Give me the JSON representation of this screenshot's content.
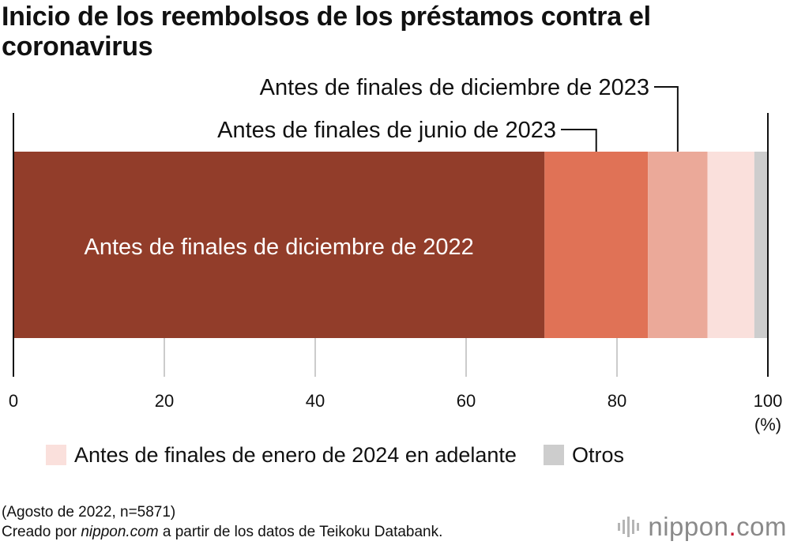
{
  "chart_data": {
    "type": "bar",
    "orientation": "horizontal-stacked",
    "title": "Inicio de los reembolsos de los préstamos contra el coronavirus",
    "series": [
      {
        "name": "Antes de finales de diciembre de 2022",
        "value": 70.4,
        "color": "#923d2a"
      },
      {
        "name": "Antes de finales de junio de 2023",
        "value": 13.7,
        "color": "#e07256"
      },
      {
        "name": "Antes de finales de diciembre de 2023",
        "value": 7.9,
        "color": "#eba999"
      },
      {
        "name": "Antes de finales de enero de 2024 en adelante",
        "value": 6.2,
        "color": "#fae0dc"
      },
      {
        "name": "Otros",
        "value": 1.8,
        "color": "#cdcdcd"
      }
    ],
    "xlim": [
      0,
      100
    ],
    "xticks": [
      "0",
      "20",
      "40",
      "60",
      "80",
      "100"
    ],
    "unit": "(%)",
    "grid": true
  },
  "legend": [
    {
      "label": "Antes de finales de enero de 2024 en adelante",
      "color": "#fae0dc"
    },
    {
      "label": "Otros",
      "color": "#cdcdcd"
    }
  ],
  "footnote": {
    "line1": "(Agosto de 2022, n=5871)",
    "line2_prefix": "Creado por ",
    "line2_italic": "nippon.com",
    "line2_suffix": " a partir de los datos de Teikoku Databank."
  },
  "brand": {
    "name": "nippon",
    "dot": ".",
    "tld": "com"
  }
}
